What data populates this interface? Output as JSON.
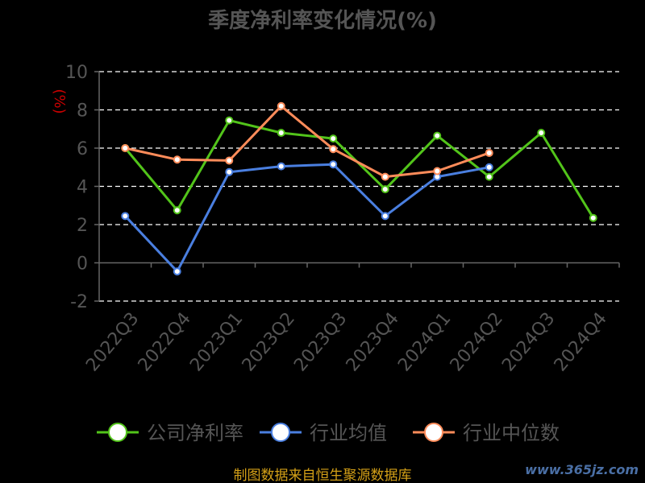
{
  "chart_data": {
    "type": "line",
    "title": "季度净利率变化情况(%)",
    "ylabel": "(%)",
    "xlabel": "",
    "categories": [
      "2022Q3",
      "2022Q4",
      "2023Q1",
      "2023Q2",
      "2023Q3",
      "2023Q4",
      "2024Q1",
      "2024Q2",
      "2024Q3",
      "2024Q4"
    ],
    "ylim": [
      -2,
      10
    ],
    "yticks": [
      "-2",
      "0",
      "2",
      "4",
      "6",
      "8",
      "10"
    ],
    "grid": true,
    "legend_position": "bottom",
    "series": [
      {
        "name": "公司净利率",
        "color": "#52c41a",
        "values": [
          6.0,
          2.75,
          7.45,
          6.8,
          6.5,
          3.85,
          6.65,
          4.5,
          6.8,
          2.35
        ]
      },
      {
        "name": "行业均值",
        "color": "#4a7fe0",
        "values": [
          2.45,
          -0.45,
          4.75,
          5.05,
          5.15,
          2.45,
          4.5,
          5.0,
          null,
          null
        ]
      },
      {
        "name": "行业中位数",
        "color": "#ff8c5a",
        "values": [
          6.0,
          5.4,
          5.35,
          8.2,
          5.95,
          4.5,
          4.8,
          5.75,
          null,
          null
        ]
      }
    ]
  },
  "footer": {
    "source": "制图数据来自恒生聚源数据库",
    "watermark": "www.365jz.com"
  }
}
